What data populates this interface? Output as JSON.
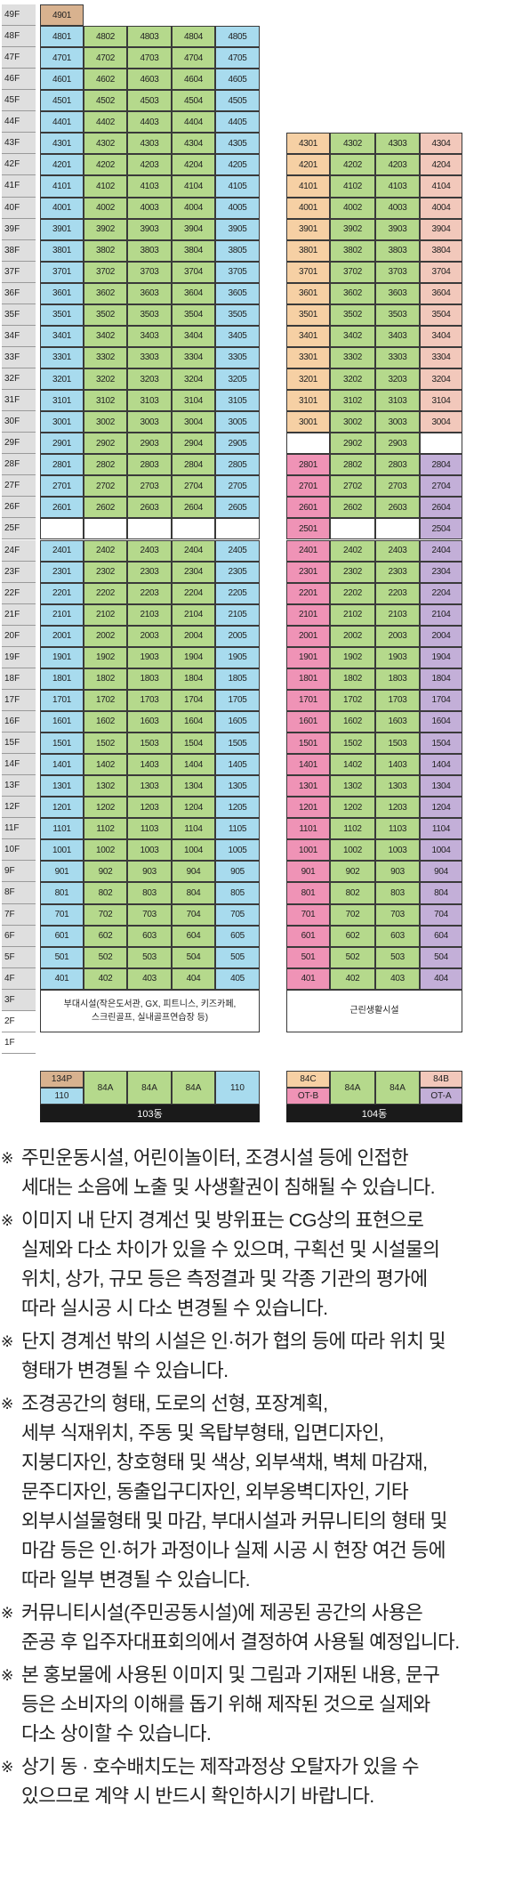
{
  "colors": {
    "blue": "#a8dbee",
    "green": "#b5d98c",
    "peach": "#f6d0a4",
    "salmon": "#f2c8bb",
    "pink": "#ef93b6",
    "purple": "#c3afd8",
    "tan": "#d8b28f",
    "white": "#ffffff",
    "floor_top": "#dfdfdf",
    "band": "#1a1a1a"
  },
  "floors": [
    "49F",
    "48F",
    "47F",
    "46F",
    "45F",
    "44F",
    "43F",
    "42F",
    "41F",
    "40F",
    "39F",
    "38F",
    "37F",
    "36F",
    "35F",
    "34F",
    "33F",
    "32F",
    "31F",
    "30F",
    "29F",
    "28F",
    "27F",
    "26F",
    "25F",
    "24F",
    "23F",
    "22F",
    "21F",
    "20F",
    "19F",
    "18F",
    "17F",
    "16F",
    "15F",
    "14F",
    "13F",
    "12F",
    "11F",
    "10F",
    "9F",
    "8F",
    "7F",
    "6F",
    "5F",
    "4F",
    "3F",
    "2F",
    "1F"
  ],
  "b103": {
    "top_unit": "4901",
    "amenity": "부대시설(작은도서관, GX, 피트니스, 키즈카페,\n스크린골프, 실내골프연습장 등)",
    "units": [
      {
        "top": "134P",
        "bottom": "110"
      },
      {
        "label": "84A"
      },
      {
        "label": "84A"
      },
      {
        "label": "84A"
      },
      {
        "label": "110"
      }
    ],
    "name": "103동"
  },
  "b104": {
    "amenity": "근린생활시설",
    "units": [
      {
        "top": "84C",
        "bottom": "OT-B"
      },
      {
        "label": "84A"
      },
      {
        "label": "84A"
      },
      {
        "top": "84B",
        "bottom": "OT-A"
      }
    ],
    "name": "104동"
  },
  "notes": [
    {
      "mark": "※",
      "text": "주민운동시설, 어린이놀이터, 조경시설 등에 인접한\n세대는 소음에 노출 및 사생활권이 침해될 수 있습니다."
    },
    {
      "mark": "※",
      "text": "이미지 내 단지 경계선 및 방위표는 CG상의 표현으로\n실제와 다소 차이가 있을 수 있으며, 구획선 및 시설물의\n위치, 상가, 규모 등은 측정결과 및 각종 기관의 평가에\n따라 실시공 시 다소 변경될 수 있습니다."
    },
    {
      "mark": "※",
      "text": "단지 경계선 밖의 시설은 인·허가 협의 등에 따라 위치 및\n형태가 변경될 수 있습니다."
    },
    {
      "mark": "※",
      "text": "조경공간의 형태, 도로의 선형, 포장계획,\n세부 식재위치, 주동 및 옥탑부형태, 입면디자인,\n지붕디자인, 창호형태 및 색상, 외부색채, 벽체 마감재,\n문주디자인, 동출입구디자인, 외부옹벽디자인, 기타\n외부시설물형태 및 마감, 부대시설과 커뮤니티의 형태 및\n마감 등은 인·허가 과정이나 실제 시공 시 현장 여건 등에\n따라 일부 변경될 수 있습니다."
    },
    {
      "mark": "※",
      "text": "커뮤니티시설(주민공동시설)에 제공된 공간의 사용은\n준공 후 입주자대표회의에서 결정하여 사용될 예정입니다."
    },
    {
      "mark": "※",
      "text": "본 홍보물에 사용된 이미지 및 그림과 기재된 내용, 문구\n등은 소비자의 이해를 돕기 위해 제작된 것으로 실제와\n다소 상이할 수 있습니다."
    },
    {
      "mark": "※",
      "text": "상기 동 · 호수배치도는 제작과정상 오탈자가 있을 수\n있으므로 계약 시 반드시 확인하시기 바랍니다."
    }
  ]
}
